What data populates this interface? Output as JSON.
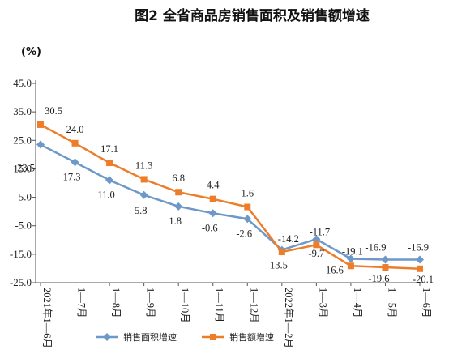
{
  "chart_data": {
    "type": "line",
    "title": "图2 全省商品房销售面积及销售额增速",
    "unit": "(%)",
    "categories": [
      "2021年1—6月",
      "1—7月",
      "1—8月",
      "1—9月",
      "1—10月",
      "1—11月",
      "1—12月",
      "2022年1—2月",
      "1—3月",
      "1—4月",
      "1—5月",
      "1—6月"
    ],
    "yticks": [
      "45.0",
      "35.0",
      "25.0",
      "15.0",
      "5.0",
      "-5.0",
      "-15.0",
      "-25.0"
    ],
    "ylim": [
      -25,
      45
    ],
    "series": [
      {
        "name": "销售面积增速",
        "color": "#6d98c8",
        "marker": "diamond",
        "values": [
          23.5,
          17.3,
          11.0,
          5.8,
          1.8,
          -0.6,
          -2.6,
          -13.5,
          -9.7,
          -16.6,
          -16.9,
          -16.9
        ],
        "labels": [
          "23.5",
          "17.3",
          "11.0",
          "5.8",
          "1.8",
          "-0.6",
          "-2.6",
          "-13.5",
          "-9.7",
          "-16.6",
          "-16.9",
          "-16.9"
        ]
      },
      {
        "name": "销售额增速",
        "color": "#ee7d2a",
        "marker": "square",
        "values": [
          30.5,
          24.0,
          17.1,
          11.3,
          6.8,
          4.4,
          1.6,
          -14.2,
          -11.7,
          -19.1,
          -19.6,
          -20.1
        ],
        "labels": [
          "30.5",
          "24.0",
          "17.1",
          "11.3",
          "6.8",
          "4.4",
          "1.6",
          "-14.2",
          "-11.7",
          "-19.1",
          "-19.6",
          "-20.1"
        ]
      }
    ],
    "grid": false,
    "legend_position": "bottom"
  },
  "colors": {
    "axis": "#555555",
    "text": "#222222"
  }
}
